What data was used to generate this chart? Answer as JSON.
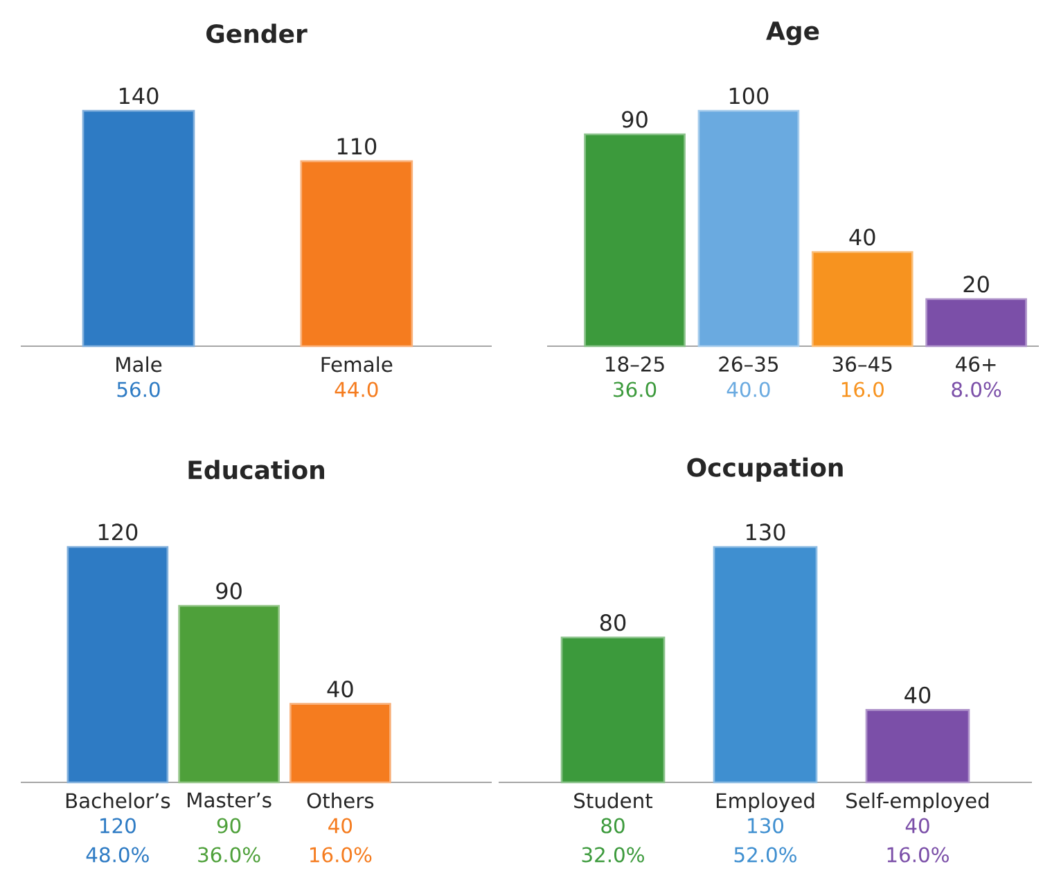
{
  "chart_data": [
    {
      "type": "bar",
      "title": "Gender",
      "categories": [
        "Male",
        "Female"
      ],
      "values": [
        140,
        110
      ],
      "colors": [
        "#2e7bc4",
        "#f57c1f"
      ],
      "data_labels": true,
      "annotations": [
        "56.0",
        "44.0"
      ]
    },
    {
      "type": "bar",
      "title": "Age",
      "categories": [
        "18–25",
        "26–35",
        "36–45",
        "46+"
      ],
      "values": [
        90,
        100,
        40,
        20
      ],
      "colors": [
        "#3c9a3c",
        "#6aaae0",
        "#f7931f",
        "#7b4fa8"
      ],
      "data_labels": true,
      "annotations": [
        "36.0",
        "40.0",
        "16.0",
        "8.0%"
      ]
    },
    {
      "type": "bar",
      "title": "Education",
      "categories": [
        "Bachelor’s",
        "Master’s",
        "Others"
      ],
      "values": [
        120,
        90,
        40
      ],
      "colors": [
        "#2e7bc4",
        "#4ea03a",
        "#f57c1f"
      ],
      "data_labels": true,
      "annotations": [
        "120",
        "90",
        "40",
        "48.0%",
        "36.0%",
        "16.0%"
      ]
    },
    {
      "type": "bar",
      "title": "Occupation",
      "categories": [
        "Student",
        "Employed",
        "Self-employed"
      ],
      "values": [
        80,
        130,
        40
      ],
      "colors": [
        "#3c9a3c",
        "#3f8fd0",
        "#7b4fa8"
      ],
      "data_labels": true,
      "annotations": [
        "80",
        "130",
        "40",
        "32.0%",
        "52.0%",
        "16.0%"
      ]
    }
  ]
}
